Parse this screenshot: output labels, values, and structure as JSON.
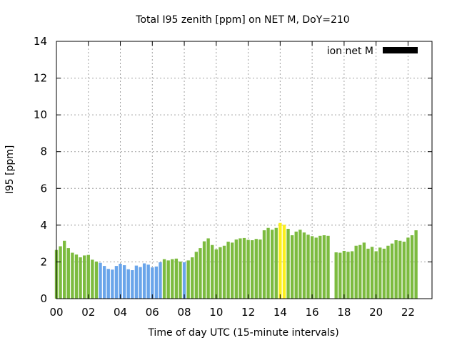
{
  "chart_data": {
    "type": "bar",
    "title": "Total I95 zenith [ppm] on NET M, DoY=210",
    "xlabel": "Time of day UTC (15-minute intervals)",
    "ylabel": "I95 [ppm]",
    "xlim": [
      0,
      23.5
    ],
    "ylim": [
      0,
      14
    ],
    "y_ticks": [
      0,
      2,
      4,
      6,
      8,
      10,
      12,
      14
    ],
    "x_ticks": [
      {
        "value": 0,
        "label": "00"
      },
      {
        "value": 2,
        "label": "02"
      },
      {
        "value": 4,
        "label": "04"
      },
      {
        "value": 6,
        "label": "06"
      },
      {
        "value": 8,
        "label": "08"
      },
      {
        "value": 10,
        "label": "10"
      },
      {
        "value": 12,
        "label": "12"
      },
      {
        "value": 14,
        "label": "14"
      },
      {
        "value": 16,
        "label": "16"
      },
      {
        "value": 18,
        "label": "18"
      },
      {
        "value": 20,
        "label": "20"
      },
      {
        "value": 22,
        "label": "22"
      }
    ],
    "grid": true,
    "legend": {
      "position": "top-right",
      "entries": [
        {
          "label": "ion net M",
          "color": "#000000"
        }
      ]
    },
    "colors": {
      "green": "#7cbb3f",
      "blue": "#6aa5ea",
      "yellow": "#fcef1c"
    },
    "bars": [
      {
        "t": 0.0,
        "v": 2.65,
        "c": "green"
      },
      {
        "t": 0.25,
        "v": 2.85,
        "c": "green"
      },
      {
        "t": 0.5,
        "v": 3.15,
        "c": "green"
      },
      {
        "t": 0.75,
        "v": 2.75,
        "c": "green"
      },
      {
        "t": 1.0,
        "v": 2.5,
        "c": "green"
      },
      {
        "t": 1.25,
        "v": 2.4,
        "c": "green"
      },
      {
        "t": 1.5,
        "v": 2.25,
        "c": "green"
      },
      {
        "t": 1.75,
        "v": 2.35,
        "c": "green"
      },
      {
        "t": 2.0,
        "v": 2.38,
        "c": "green"
      },
      {
        "t": 2.25,
        "v": 2.12,
        "c": "green"
      },
      {
        "t": 2.5,
        "v": 2.02,
        "c": "green"
      },
      {
        "t": 2.75,
        "v": 1.95,
        "c": "blue"
      },
      {
        "t": 3.0,
        "v": 1.78,
        "c": "blue"
      },
      {
        "t": 3.25,
        "v": 1.62,
        "c": "blue"
      },
      {
        "t": 3.5,
        "v": 1.58,
        "c": "blue"
      },
      {
        "t": 3.75,
        "v": 1.78,
        "c": "blue"
      },
      {
        "t": 4.0,
        "v": 1.9,
        "c": "blue"
      },
      {
        "t": 4.25,
        "v": 1.82,
        "c": "blue"
      },
      {
        "t": 4.5,
        "v": 1.6,
        "c": "blue"
      },
      {
        "t": 4.75,
        "v": 1.55,
        "c": "blue"
      },
      {
        "t": 5.0,
        "v": 1.8,
        "c": "blue"
      },
      {
        "t": 5.25,
        "v": 1.72,
        "c": "blue"
      },
      {
        "t": 5.5,
        "v": 1.92,
        "c": "blue"
      },
      {
        "t": 5.75,
        "v": 1.85,
        "c": "blue"
      },
      {
        "t": 6.0,
        "v": 1.7,
        "c": "blue"
      },
      {
        "t": 6.25,
        "v": 1.75,
        "c": "blue"
      },
      {
        "t": 6.5,
        "v": 1.98,
        "c": "blue"
      },
      {
        "t": 6.75,
        "v": 2.15,
        "c": "green"
      },
      {
        "t": 7.0,
        "v": 2.08,
        "c": "green"
      },
      {
        "t": 7.25,
        "v": 2.15,
        "c": "green"
      },
      {
        "t": 7.5,
        "v": 2.18,
        "c": "green"
      },
      {
        "t": 7.75,
        "v": 2.02,
        "c": "green"
      },
      {
        "t": 8.0,
        "v": 1.98,
        "c": "blue"
      },
      {
        "t": 8.25,
        "v": 2.08,
        "c": "green"
      },
      {
        "t": 8.5,
        "v": 2.25,
        "c": "green"
      },
      {
        "t": 8.75,
        "v": 2.55,
        "c": "green"
      },
      {
        "t": 9.0,
        "v": 2.75,
        "c": "green"
      },
      {
        "t": 9.25,
        "v": 3.12,
        "c": "green"
      },
      {
        "t": 9.5,
        "v": 3.28,
        "c": "green"
      },
      {
        "t": 9.75,
        "v": 2.92,
        "c": "green"
      },
      {
        "t": 10.0,
        "v": 2.68,
        "c": "green"
      },
      {
        "t": 10.25,
        "v": 2.8,
        "c": "green"
      },
      {
        "t": 10.5,
        "v": 2.88,
        "c": "green"
      },
      {
        "t": 10.75,
        "v": 3.1,
        "c": "green"
      },
      {
        "t": 11.0,
        "v": 3.05,
        "c": "green"
      },
      {
        "t": 11.25,
        "v": 3.22,
        "c": "green"
      },
      {
        "t": 11.5,
        "v": 3.28,
        "c": "green"
      },
      {
        "t": 11.75,
        "v": 3.3,
        "c": "green"
      },
      {
        "t": 12.0,
        "v": 3.2,
        "c": "green"
      },
      {
        "t": 12.25,
        "v": 3.18,
        "c": "green"
      },
      {
        "t": 12.5,
        "v": 3.25,
        "c": "green"
      },
      {
        "t": 12.75,
        "v": 3.22,
        "c": "green"
      },
      {
        "t": 13.0,
        "v": 3.72,
        "c": "green"
      },
      {
        "t": 13.25,
        "v": 3.85,
        "c": "green"
      },
      {
        "t": 13.5,
        "v": 3.75,
        "c": "green"
      },
      {
        "t": 13.75,
        "v": 3.85,
        "c": "green"
      },
      {
        "t": 14.0,
        "v": 4.12,
        "c": "yellow"
      },
      {
        "t": 14.25,
        "v": 4.02,
        "c": "yellow"
      },
      {
        "t": 14.5,
        "v": 3.8,
        "c": "green"
      },
      {
        "t": 14.75,
        "v": 3.45,
        "c": "green"
      },
      {
        "t": 15.0,
        "v": 3.65,
        "c": "green"
      },
      {
        "t": 15.25,
        "v": 3.75,
        "c": "green"
      },
      {
        "t": 15.5,
        "v": 3.6,
        "c": "green"
      },
      {
        "t": 15.75,
        "v": 3.48,
        "c": "green"
      },
      {
        "t": 16.0,
        "v": 3.4,
        "c": "green"
      },
      {
        "t": 16.25,
        "v": 3.32,
        "c": "green"
      },
      {
        "t": 16.5,
        "v": 3.42,
        "c": "green"
      },
      {
        "t": 16.75,
        "v": 3.45,
        "c": "green"
      },
      {
        "t": 17.0,
        "v": 3.42,
        "c": "green"
      },
      {
        "t": 17.5,
        "v": 2.52,
        "c": "green"
      },
      {
        "t": 17.75,
        "v": 2.5,
        "c": "green"
      },
      {
        "t": 18.0,
        "v": 2.6,
        "c": "green"
      },
      {
        "t": 18.25,
        "v": 2.55,
        "c": "green"
      },
      {
        "t": 18.5,
        "v": 2.58,
        "c": "green"
      },
      {
        "t": 18.75,
        "v": 2.88,
        "c": "green"
      },
      {
        "t": 19.0,
        "v": 2.92,
        "c": "green"
      },
      {
        "t": 19.25,
        "v": 3.05,
        "c": "green"
      },
      {
        "t": 19.5,
        "v": 2.72,
        "c": "green"
      },
      {
        "t": 19.75,
        "v": 2.82,
        "c": "green"
      },
      {
        "t": 20.0,
        "v": 2.58,
        "c": "green"
      },
      {
        "t": 20.25,
        "v": 2.78,
        "c": "green"
      },
      {
        "t": 20.5,
        "v": 2.72,
        "c": "green"
      },
      {
        "t": 20.75,
        "v": 2.88,
        "c": "green"
      },
      {
        "t": 21.0,
        "v": 3.0,
        "c": "green"
      },
      {
        "t": 21.25,
        "v": 3.18,
        "c": "green"
      },
      {
        "t": 21.5,
        "v": 3.15,
        "c": "green"
      },
      {
        "t": 21.75,
        "v": 3.1,
        "c": "green"
      },
      {
        "t": 22.0,
        "v": 3.32,
        "c": "green"
      },
      {
        "t": 22.25,
        "v": 3.45,
        "c": "green"
      },
      {
        "t": 22.5,
        "v": 3.72,
        "c": "green"
      }
    ]
  }
}
